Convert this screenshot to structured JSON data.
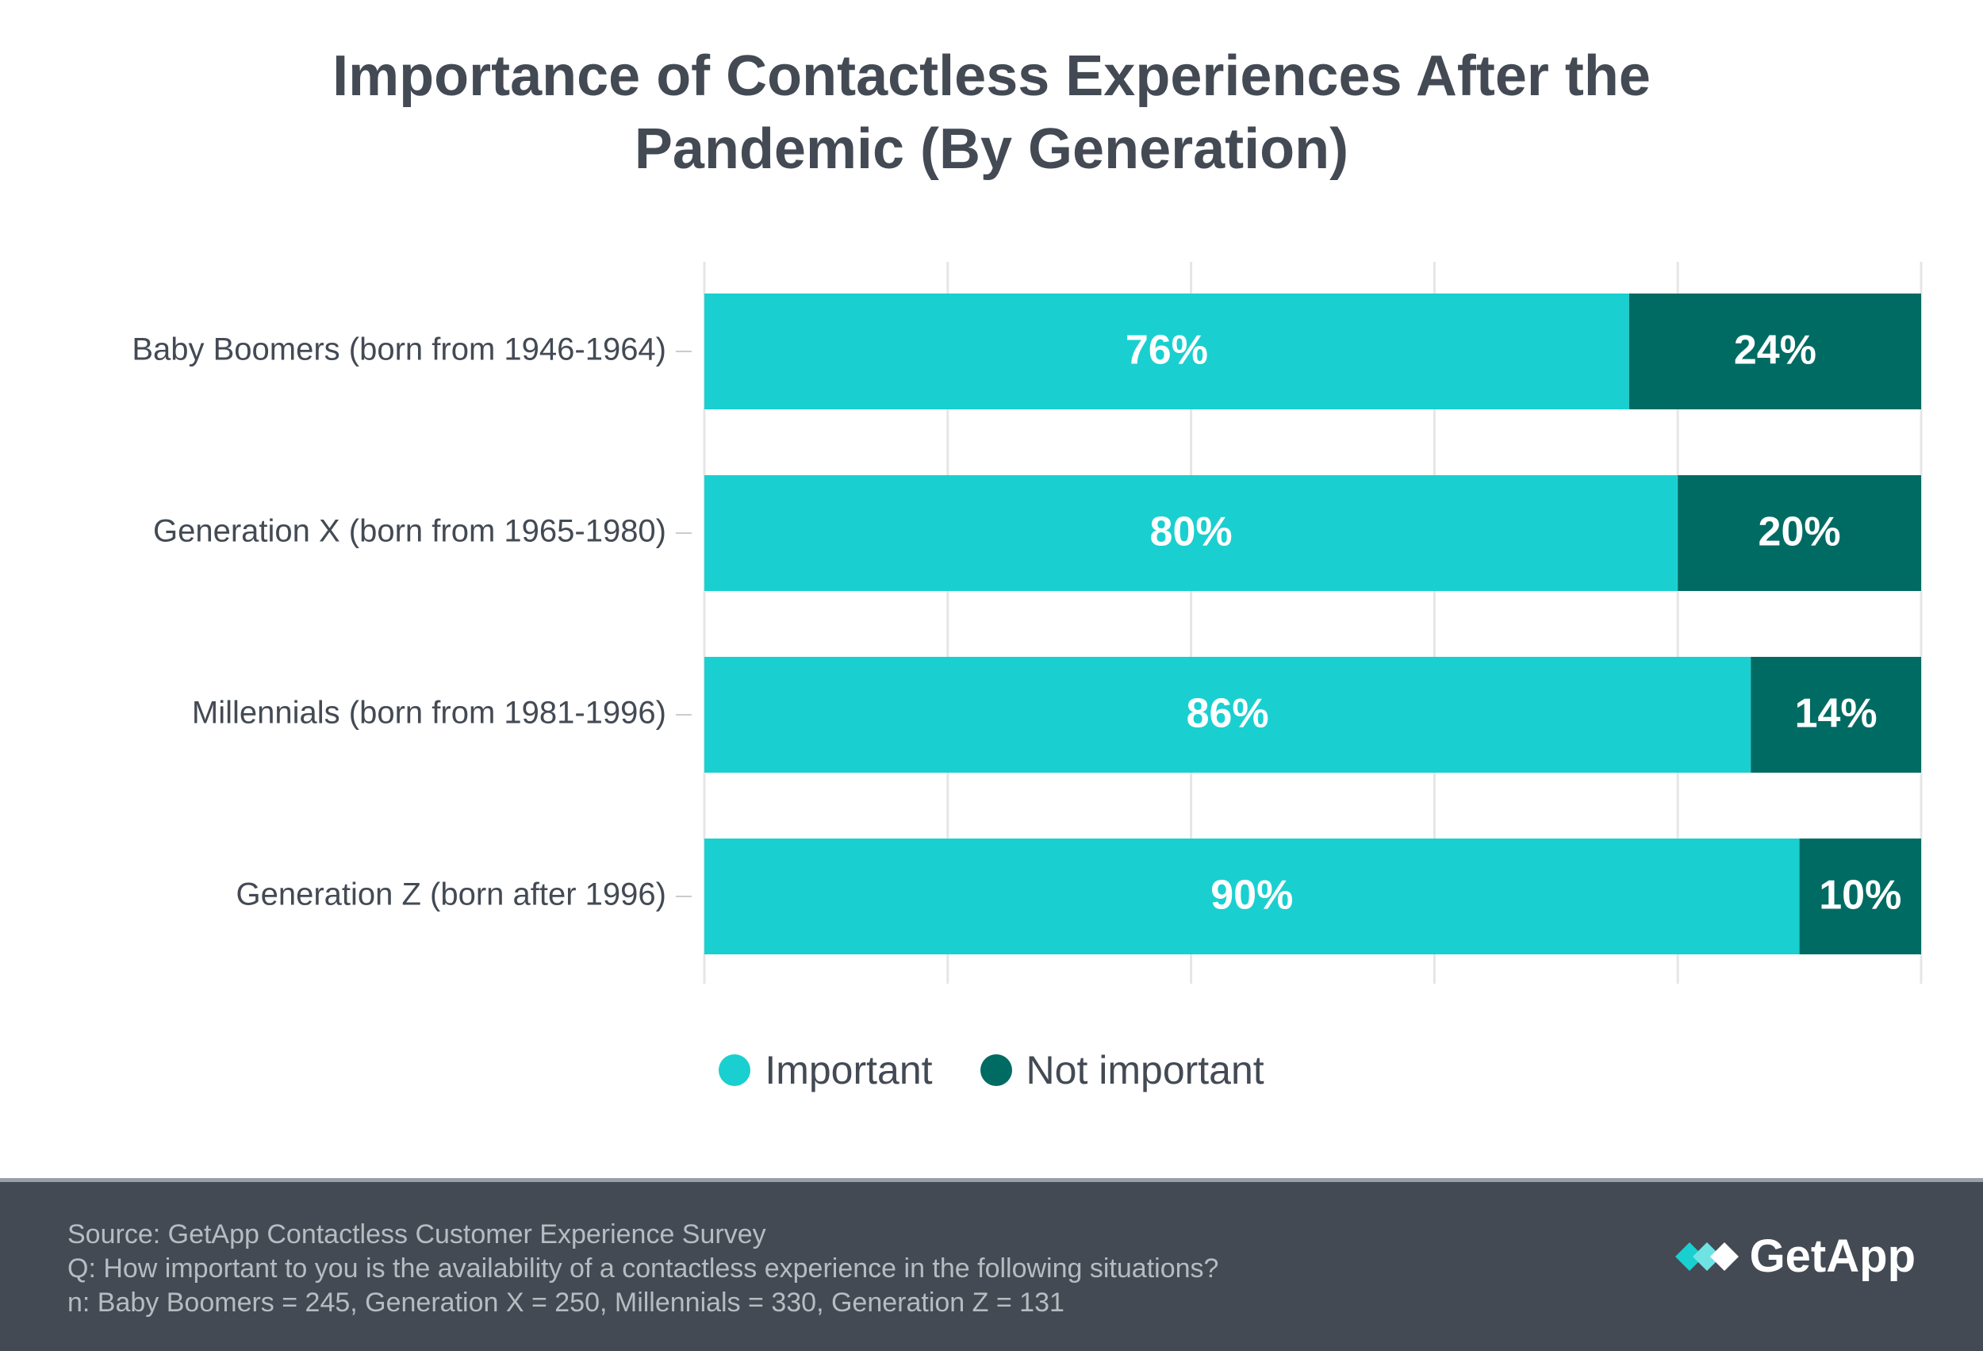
{
  "chart_data": {
    "type": "bar",
    "orientation": "horizontal",
    "stacked": true,
    "title": "Importance of Contactless Experiences After the Pandemic (By Generation)",
    "title_lines": [
      "Importance of Contactless Experiences After the",
      "Pandemic (By Generation)"
    ],
    "categories": [
      "Baby Boomers (born from 1946-1964)",
      "Generation X (born from 1965-1980)",
      "Millennials (born from 1981-1996)",
      "Generation Z (born after 1996)"
    ],
    "series": [
      {
        "name": "Important",
        "color": "#1acfd0",
        "values": [
          76,
          80,
          86,
          90
        ],
        "labels": [
          "76%",
          "80%",
          "86%",
          "90%"
        ]
      },
      {
        "name": "Not important",
        "color": "#006b63",
        "values": [
          24,
          20,
          14,
          10
        ],
        "labels": [
          "24%",
          "20%",
          "14%",
          "10%"
        ]
      }
    ],
    "xlim": [
      0,
      100
    ],
    "grid": true,
    "legend": "bottom-center",
    "xlabel": "",
    "ylabel": ""
  },
  "footer": {
    "source": "Source: GetApp Contactless Customer Experience Survey",
    "question": "Q: How important to you is the availability of a contactless experience in the following situations?",
    "sample": "n: Baby Boomers = 245, Generation X = 250, Millennials = 330, Generation Z = 131",
    "brand": "GetApp",
    "brand_icon": "getapp-logo-icon",
    "background": "#444a53"
  }
}
